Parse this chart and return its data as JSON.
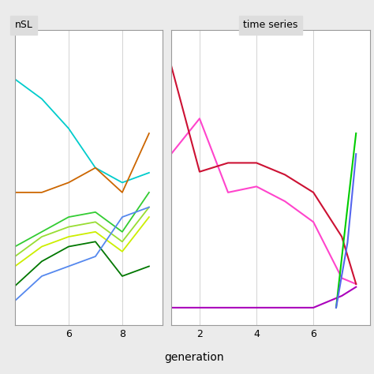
{
  "nsl_panel": {
    "title": "nSL",
    "x_ticks": [
      6,
      8
    ],
    "lines": [
      {
        "x": [
          4,
          5,
          6,
          7,
          8,
          9
        ],
        "y": [
          0.78,
          0.74,
          0.68,
          0.6,
          0.57,
          0.59
        ],
        "color": "#00CCCC",
        "lw": 1.3
      },
      {
        "x": [
          4,
          5,
          6,
          7,
          8,
          9
        ],
        "y": [
          0.55,
          0.55,
          0.57,
          0.6,
          0.55,
          0.67
        ],
        "color": "#CC6600",
        "lw": 1.3
      },
      {
        "x": [
          4,
          5,
          6,
          7,
          8,
          9
        ],
        "y": [
          0.44,
          0.47,
          0.5,
          0.51,
          0.47,
          0.55
        ],
        "color": "#33CC33",
        "lw": 1.3
      },
      {
        "x": [
          4,
          5,
          6,
          7,
          8,
          9
        ],
        "y": [
          0.42,
          0.46,
          0.48,
          0.49,
          0.45,
          0.52
        ],
        "color": "#99DD33",
        "lw": 1.3
      },
      {
        "x": [
          4,
          5,
          6,
          7,
          8,
          9
        ],
        "y": [
          0.4,
          0.44,
          0.46,
          0.47,
          0.43,
          0.5
        ],
        "color": "#CCEE00",
        "lw": 1.3
      },
      {
        "x": [
          4,
          5,
          6,
          7,
          8,
          9
        ],
        "y": [
          0.36,
          0.41,
          0.44,
          0.45,
          0.38,
          0.4
        ],
        "color": "#007700",
        "lw": 1.3
      },
      {
        "x": [
          4,
          5,
          6,
          7,
          8,
          9
        ],
        "y": [
          0.33,
          0.38,
          0.4,
          0.42,
          0.5,
          0.52
        ],
        "color": "#5588EE",
        "lw": 1.3
      }
    ],
    "ylim": [
      0.28,
      0.88
    ],
    "xlim": [
      4.0,
      9.5
    ]
  },
  "ts_panel": {
    "title": "time series",
    "x_ticks": [
      2,
      4,
      6
    ],
    "lines": [
      {
        "x": [
          1,
          2,
          3,
          4,
          5,
          6,
          7,
          7.5
        ],
        "y": [
          0.58,
          0.7,
          0.45,
          0.47,
          0.42,
          0.35,
          0.16,
          0.14
        ],
        "color": "#FF44CC",
        "lw": 1.5
      },
      {
        "x": [
          1,
          2,
          3,
          4,
          5,
          6,
          7,
          7.5
        ],
        "y": [
          0.88,
          0.52,
          0.55,
          0.55,
          0.51,
          0.45,
          0.3,
          0.14
        ],
        "color": "#CC1133",
        "lw": 1.5
      },
      {
        "x": [
          1,
          2,
          3,
          4,
          5,
          6,
          7,
          7.5
        ],
        "y": [
          0.06,
          0.06,
          0.06,
          0.06,
          0.06,
          0.06,
          0.1,
          0.13
        ],
        "color": "#AA00BB",
        "lw": 1.5
      },
      {
        "x": [
          6.8,
          7.2,
          7.5
        ],
        "y": [
          0.06,
          0.4,
          0.65
        ],
        "color": "#00CC00",
        "lw": 1.5
      },
      {
        "x": [
          6.8,
          7.2,
          7.5
        ],
        "y": [
          0.06,
          0.28,
          0.58
        ],
        "color": "#5566EE",
        "lw": 1.5
      }
    ],
    "ylim": [
      0.0,
      1.0
    ],
    "xlim": [
      1.0,
      8.0
    ]
  },
  "background_color": "#EBEBEB",
  "panel_bg": "#FFFFFF",
  "grid_color": "#CCCCCC",
  "title_bg": "#DDDDDD",
  "xlabel": "generation",
  "title_fontsize": 9,
  "xlabel_fontsize": 10,
  "tick_fontsize": 9
}
